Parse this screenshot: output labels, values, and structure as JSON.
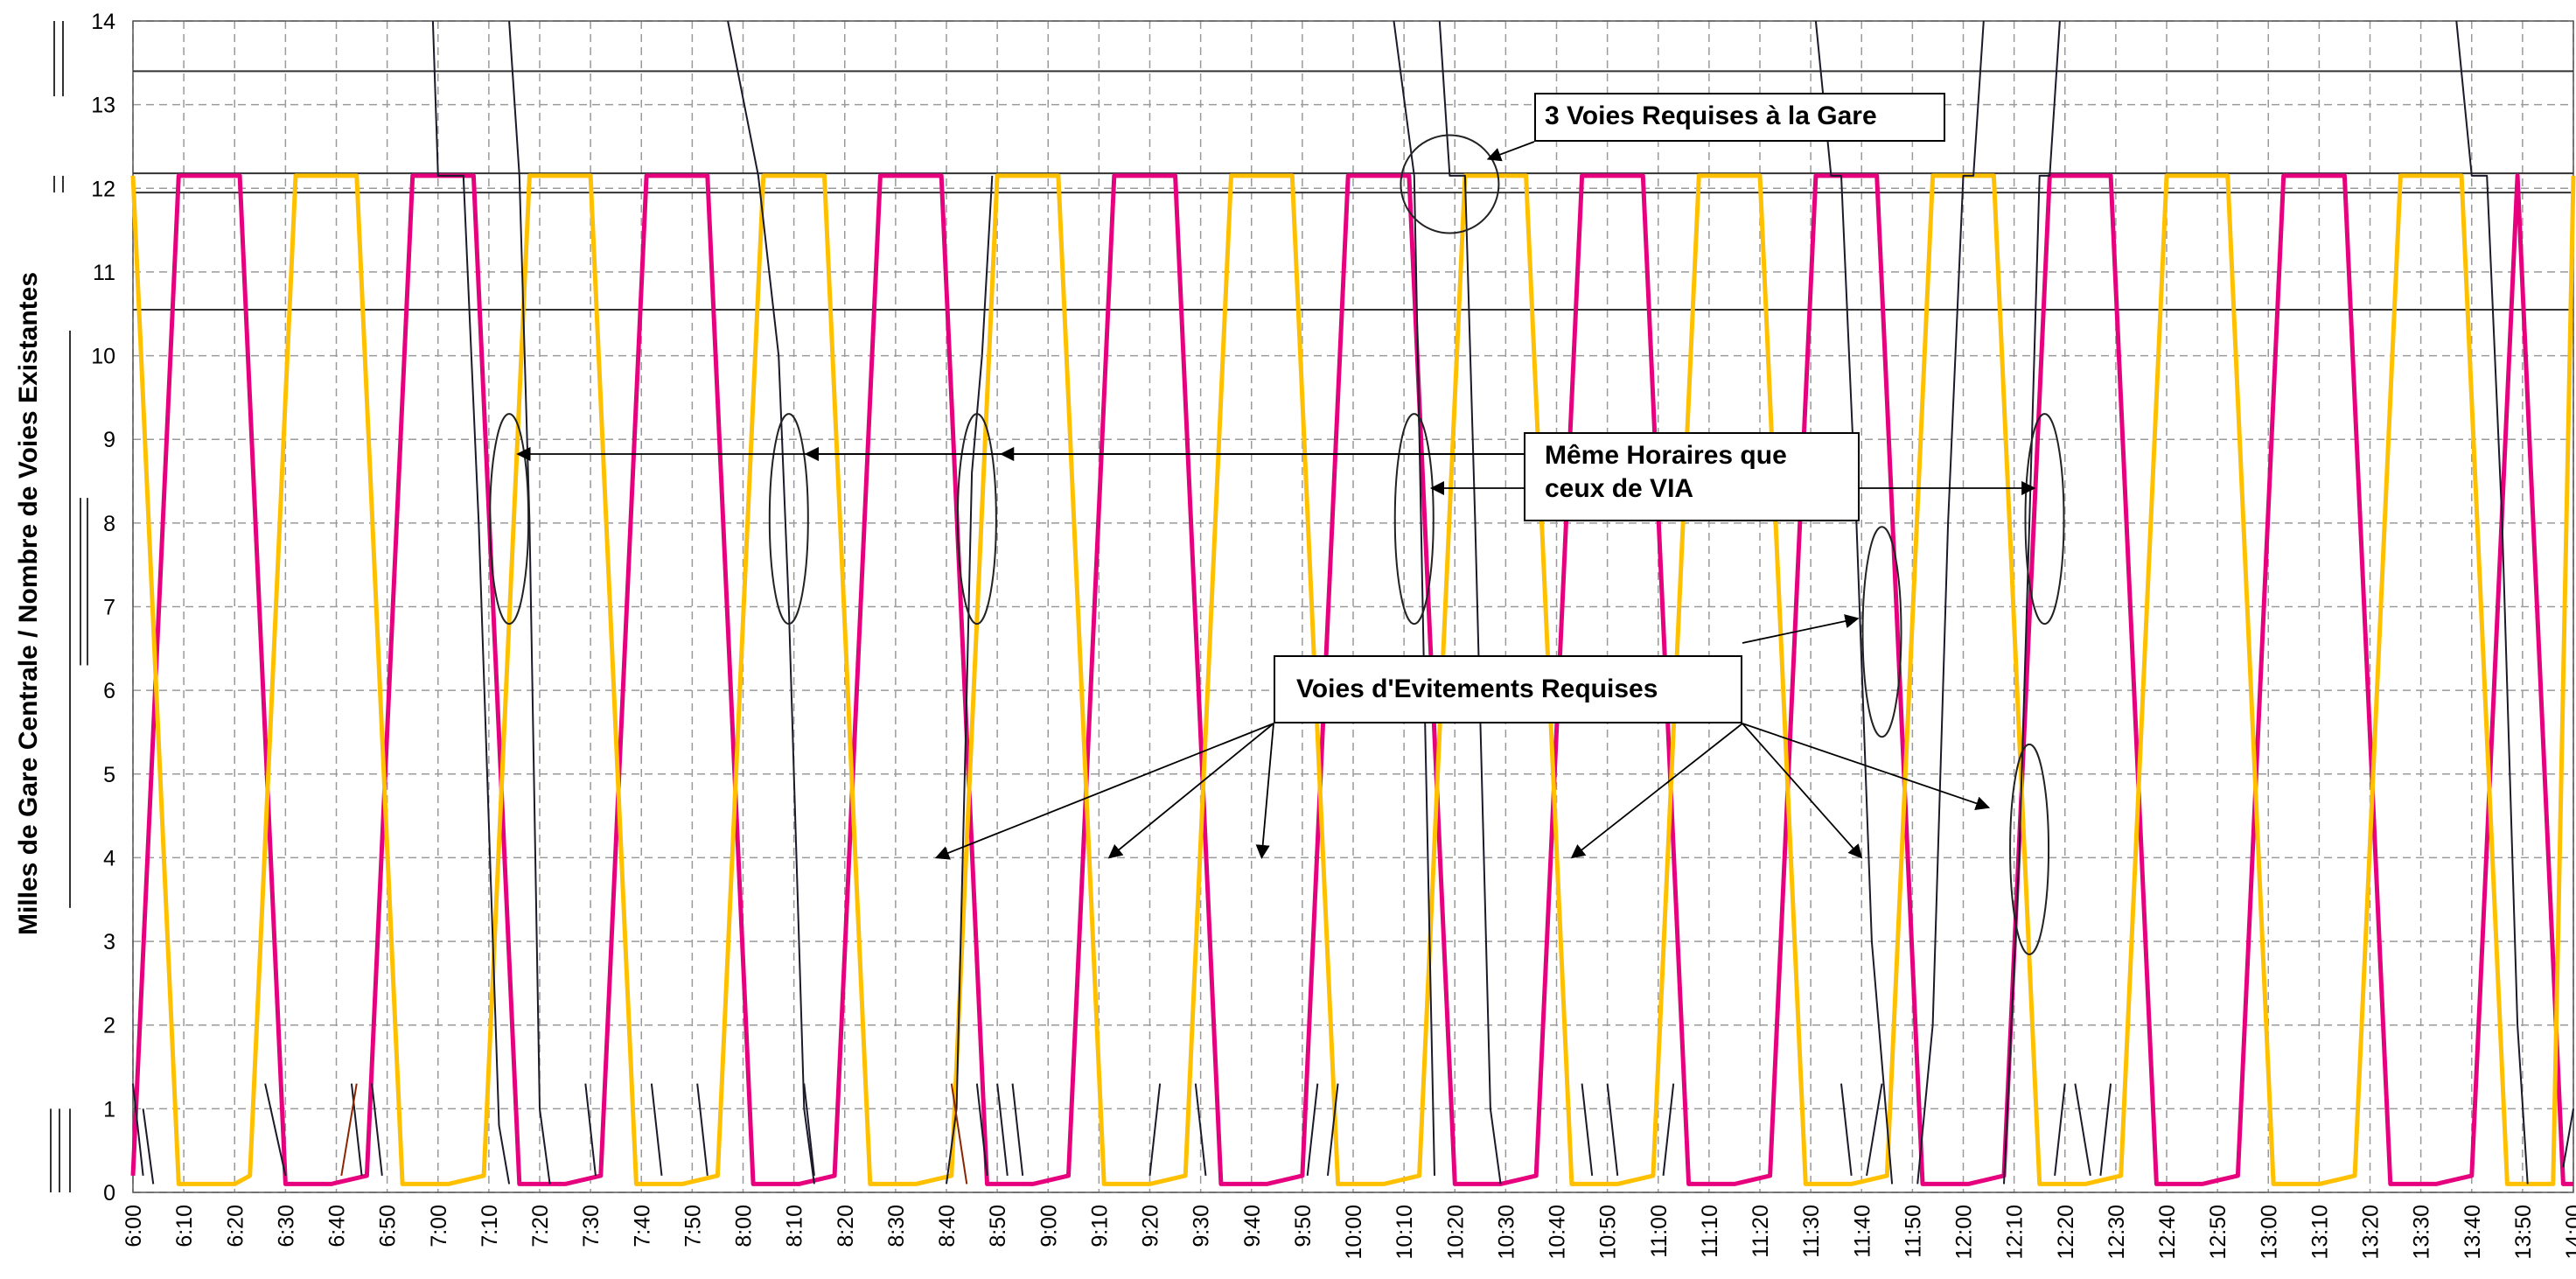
{
  "chart_data": {
    "type": "line",
    "title": "",
    "xlabel": "",
    "ylabel": "Milles de Gare Centrale / Nombre de Voies Existantes",
    "ylim": [
      0,
      14
    ],
    "yticks": [
      0,
      1,
      2,
      3,
      4,
      5,
      6,
      7,
      8,
      9,
      10,
      11,
      12,
      13,
      14
    ],
    "xlim": [
      "6:00",
      "14:00"
    ],
    "xticks": [
      "6:00",
      "6:10",
      "6:20",
      "6:30",
      "6:40",
      "6:50",
      "7:00",
      "7:10",
      "7:20",
      "7:30",
      "7:40",
      "7:50",
      "8:00",
      "8:10",
      "8:20",
      "8:30",
      "8:40",
      "8:50",
      "9:00",
      "9:10",
      "9:20",
      "9:30",
      "9:40",
      "9:50",
      "10:00",
      "10:10",
      "10:20",
      "10:30",
      "10:40",
      "10:50",
      "11:00",
      "11:10",
      "11:20",
      "11:30",
      "11:40",
      "11:50",
      "12:00",
      "12:10",
      "12:20",
      "12:30",
      "12:40",
      "12:50",
      "13:00",
      "13:10",
      "13:20",
      "13:30",
      "13:40",
      "13:50",
      "14:00"
    ],
    "grid": true,
    "reference_lines": [
      13.4,
      12.18,
      11.95,
      10.55
    ],
    "station_mile": 12.15,
    "series": [
      {
        "color": "#E6007E",
        "width": 5,
        "points": [
          [
            "6:00",
            0.2
          ],
          [
            "6:09",
            12.15
          ],
          [
            "6:21",
            12.15
          ],
          [
            "6:30",
            0.1
          ],
          [
            "6:39",
            0.1
          ],
          [
            "6:46",
            0.2
          ],
          [
            "6:55",
            12.15
          ],
          [
            "7:07",
            12.15
          ],
          [
            "7:16",
            0.1
          ],
          [
            "7:25",
            0.1
          ],
          [
            "7:32",
            0.2
          ],
          [
            "7:41",
            12.15
          ],
          [
            "7:53",
            12.15
          ],
          [
            "8:02",
            0.1
          ],
          [
            "8:11",
            0.1
          ],
          [
            "8:18",
            0.2
          ],
          [
            "8:27",
            12.15
          ],
          [
            "8:39",
            12.15
          ],
          [
            "8:48",
            0.1
          ],
          [
            "8:57",
            0.1
          ],
          [
            "9:04",
            0.2
          ],
          [
            "9:13",
            12.15
          ],
          [
            "9:25",
            12.15
          ],
          [
            "9:34",
            0.1
          ],
          [
            "9:43",
            0.1
          ],
          [
            "9:50",
            0.2
          ],
          [
            "9:59",
            12.15
          ],
          [
            "10:11",
            12.15
          ],
          [
            "10:20",
            0.1
          ],
          [
            "10:29",
            0.1
          ],
          [
            "10:36",
            0.2
          ],
          [
            "10:45",
            12.15
          ],
          [
            "10:57",
            12.15
          ],
          [
            "11:06",
            0.1
          ],
          [
            "11:15",
            0.1
          ],
          [
            "11:22",
            0.2
          ],
          [
            "11:31",
            12.15
          ],
          [
            "11:43",
            12.15
          ],
          [
            "11:52",
            0.1
          ],
          [
            "12:01",
            0.1
          ],
          [
            "12:08",
            0.2
          ],
          [
            "12:17",
            12.15
          ],
          [
            "12:29",
            12.15
          ],
          [
            "12:38",
            0.1
          ],
          [
            "12:47",
            0.1
          ],
          [
            "12:54",
            0.2
          ],
          [
            "13:03",
            12.15
          ],
          [
            "13:15",
            12.15
          ],
          [
            "13:24",
            0.1
          ],
          [
            "13:33",
            0.1
          ],
          [
            "13:40",
            0.2
          ],
          [
            "13:49",
            12.15
          ],
          [
            "13:58",
            0.1
          ],
          [
            "14:00",
            0.1
          ]
        ]
      },
      {
        "color": "#FFC000",
        "width": 5,
        "points": [
          [
            "6:00",
            12.15
          ],
          [
            "6:09",
            0.1
          ],
          [
            "6:13",
            0.1
          ],
          [
            "6:20",
            0.1
          ],
          [
            "6:23",
            0.2
          ],
          [
            "6:32",
            12.15
          ],
          [
            "6:44",
            12.15
          ],
          [
            "6:53",
            0.1
          ],
          [
            "7:02",
            0.1
          ],
          [
            "7:09",
            0.2
          ],
          [
            "7:18",
            12.15
          ],
          [
            "7:30",
            12.15
          ],
          [
            "7:39",
            0.1
          ],
          [
            "7:48",
            0.1
          ],
          [
            "7:55",
            0.2
          ],
          [
            "8:04",
            12.15
          ],
          [
            "8:16",
            12.15
          ],
          [
            "8:25",
            0.1
          ],
          [
            "8:34",
            0.1
          ],
          [
            "8:41",
            0.2
          ],
          [
            "8:50",
            12.15
          ],
          [
            "9:02",
            12.15
          ],
          [
            "9:11",
            0.1
          ],
          [
            "9:20",
            0.1
          ],
          [
            "9:27",
            0.2
          ],
          [
            "9:36",
            12.15
          ],
          [
            "9:48",
            12.15
          ],
          [
            "9:57",
            0.1
          ],
          [
            "10:06",
            0.1
          ],
          [
            "10:13",
            0.2
          ],
          [
            "10:22",
            12.15
          ],
          [
            "10:34",
            12.15
          ],
          [
            "10:43",
            0.1
          ],
          [
            "10:52",
            0.1
          ],
          [
            "10:59",
            0.2
          ],
          [
            "11:08",
            12.15
          ],
          [
            "11:20",
            12.15
          ],
          [
            "11:29",
            0.1
          ],
          [
            "11:38",
            0.1
          ],
          [
            "11:45",
            0.2
          ],
          [
            "11:54",
            12.15
          ],
          [
            "12:06",
            12.15
          ],
          [
            "12:15",
            0.1
          ],
          [
            "12:24",
            0.1
          ],
          [
            "12:31",
            0.2
          ],
          [
            "12:40",
            12.15
          ],
          [
            "12:52",
            12.15
          ],
          [
            "13:01",
            0.1
          ],
          [
            "13:10",
            0.1
          ],
          [
            "13:17",
            0.2
          ],
          [
            "13:26",
            12.15
          ],
          [
            "13:38",
            12.15
          ],
          [
            "13:47",
            0.1
          ],
          [
            "13:56",
            0.1
          ],
          [
            "14:00",
            12.15
          ]
        ]
      },
      {
        "color": "#1a1a2a",
        "width": 2,
        "points": [
          [
            "6:59",
            14
          ],
          [
            "7:00",
            12.15
          ],
          [
            "7:05",
            12.15
          ],
          [
            "7:08",
            8
          ],
          [
            "7:12",
            0.8
          ],
          [
            "7:14",
            0.1
          ]
        ]
      },
      {
        "color": "#1a1a2a",
        "width": 2,
        "points": [
          [
            "7:14",
            14
          ],
          [
            "7:16",
            12.15
          ],
          [
            "7:18",
            8
          ],
          [
            "7:20",
            1
          ],
          [
            "7:22",
            0.1
          ]
        ]
      },
      {
        "color": "#1a1a2a",
        "width": 2,
        "points": [
          [
            "7:57",
            14
          ],
          [
            "8:03",
            12.15
          ],
          [
            "8:07",
            10
          ],
          [
            "8:09",
            7
          ],
          [
            "8:12",
            1
          ],
          [
            "8:14",
            0.1
          ]
        ]
      },
      {
        "color": "#1a1a2a",
        "width": 2,
        "points": [
          [
            "8:40",
            0.1
          ],
          [
            "8:42",
            1
          ],
          [
            "8:44",
            6
          ],
          [
            "8:45",
            8.6
          ],
          [
            "8:47",
            10
          ],
          [
            "8:49",
            12.15
          ]
        ]
      },
      {
        "color": "#1a1a2a",
        "width": 2,
        "points": [
          [
            "10:08",
            14
          ],
          [
            "10:12",
            12.15
          ],
          [
            "10:14",
            6
          ],
          [
            "10:16",
            0.2
          ]
        ]
      },
      {
        "color": "#1a1a2a",
        "width": 2,
        "points": [
          [
            "10:17",
            14
          ],
          [
            "10:19",
            12.15
          ],
          [
            "10:22",
            12.15
          ],
          [
            "10:24",
            8
          ],
          [
            "10:27",
            1
          ],
          [
            "10:29",
            0.1
          ]
        ]
      },
      {
        "color": "#1a1a2a",
        "width": 2,
        "points": [
          [
            "11:31",
            14
          ],
          [
            "11:34",
            12.15
          ],
          [
            "11:36",
            12.15
          ],
          [
            "11:39",
            8
          ],
          [
            "11:42",
            3
          ],
          [
            "11:46",
            0.1
          ]
        ]
      },
      {
        "color": "#1a1a2a",
        "width": 2,
        "points": [
          [
            "11:51",
            0.1
          ],
          [
            "11:54",
            2
          ],
          [
            "11:57",
            8
          ],
          [
            "12:00",
            12.15
          ],
          [
            "12:02",
            12.15
          ],
          [
            "12:04",
            14
          ]
        ]
      },
      {
        "color": "#1a1a2a",
        "width": 2,
        "points": [
          [
            "12:08",
            0.1
          ],
          [
            "12:11",
            4
          ],
          [
            "12:13",
            8
          ],
          [
            "12:15",
            12.15
          ],
          [
            "12:17",
            12.15
          ],
          [
            "12:19",
            14
          ]
        ]
      },
      {
        "color": "#1a1a2a",
        "width": 2,
        "points": [
          [
            "13:37",
            14
          ],
          [
            "13:40",
            12.15
          ],
          [
            "13:43",
            12.15
          ],
          [
            "13:46",
            8
          ],
          [
            "13:49",
            2
          ],
          [
            "13:51",
            0.1
          ]
        ]
      }
    ],
    "annotations": [
      {
        "text": "3 Voies Requises à la Gare"
      },
      {
        "text": "Même Horaires que\nceux de VIA"
      },
      {
        "text": "Voies d'Evitements Requises"
      }
    ]
  }
}
